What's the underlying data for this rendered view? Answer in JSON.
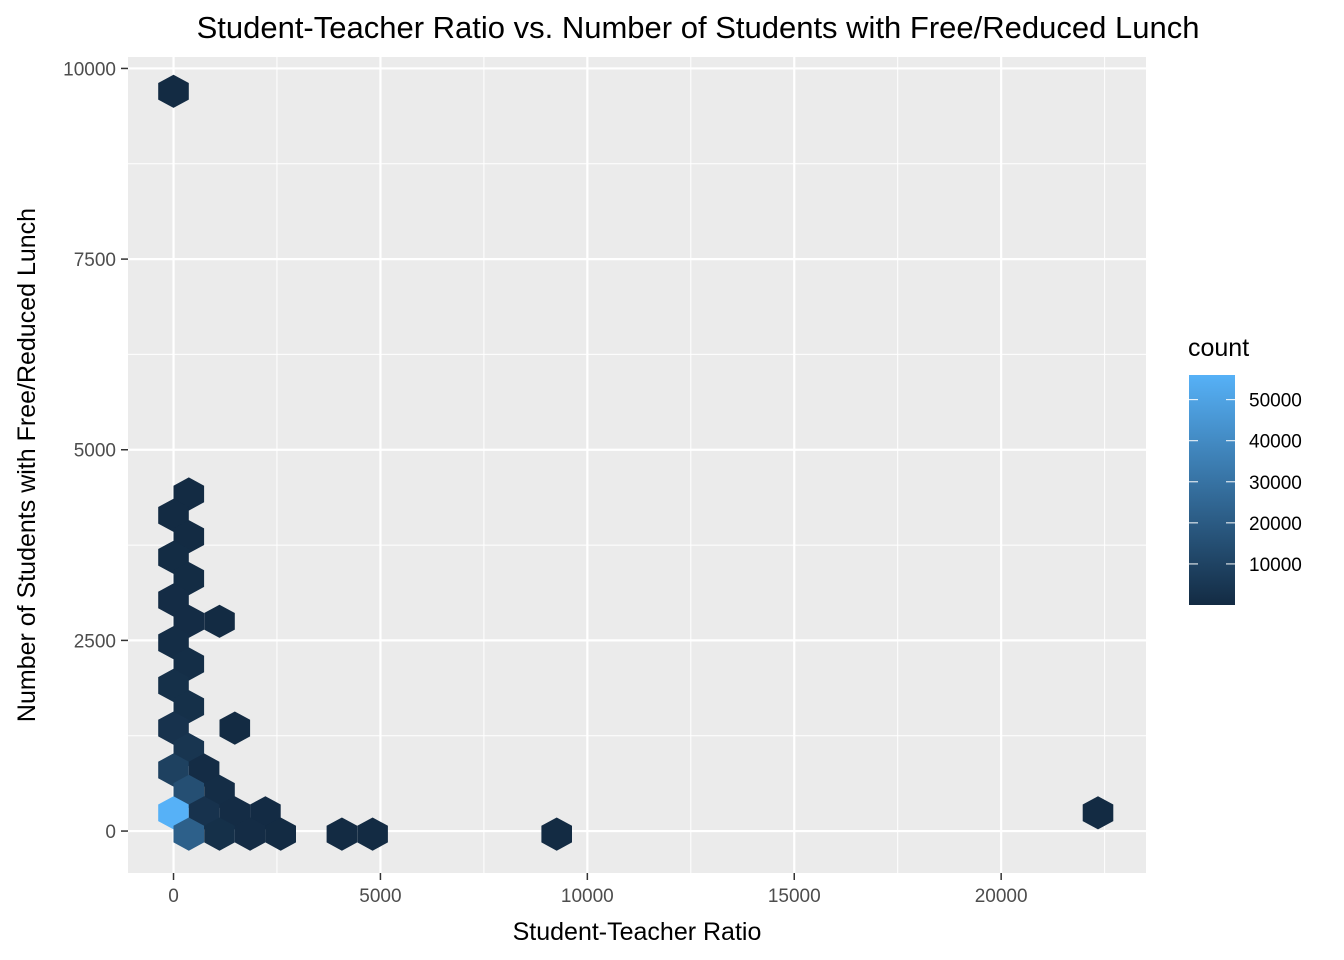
{
  "chart_data": {
    "type": "heatmap",
    "subtype": "hexbin",
    "title": "Student-Teacher Ratio vs. Number of Students with Free/Reduced Lunch",
    "xlabel": "Student-Teacher Ratio",
    "ylabel": "Number of Students with Free/Reduced Lunch",
    "xlim": [
      -1100,
      23500
    ],
    "ylim": [
      -550,
      10150
    ],
    "x_ticks": [
      0,
      5000,
      10000,
      15000,
      20000
    ],
    "y_ticks": [
      0,
      2500,
      5000,
      7500,
      10000
    ],
    "x_tick_labels": [
      "0",
      "5000",
      "10000",
      "15000",
      "20000"
    ],
    "y_tick_labels": [
      "0",
      "2500",
      "5000",
      "7500",
      "10000"
    ],
    "grid": true,
    "legend": {
      "title": "count",
      "placement": "right",
      "min": 1,
      "max": 56000,
      "breaks": [
        10000,
        20000,
        30000,
        40000,
        50000
      ],
      "break_labels": [
        "10000",
        "20000",
        "30000",
        "40000",
        "50000"
      ],
      "color_low": "#132B43",
      "color_high": "#56B1F7"
    },
    "colors": {
      "panel": "#EBEBEB",
      "gridline": "#FFFFFF"
    },
    "hexagons": [
      {
        "x": 0,
        "y": 9700,
        "count": 50
      },
      {
        "x": 370,
        "y": 4420,
        "count": 60
      },
      {
        "x": 0,
        "y": 4140,
        "count": 100
      },
      {
        "x": 370,
        "y": 3860,
        "count": 150
      },
      {
        "x": 0,
        "y": 3590,
        "count": 300
      },
      {
        "x": 370,
        "y": 3310,
        "count": 300
      },
      {
        "x": 0,
        "y": 3030,
        "count": 500
      },
      {
        "x": 370,
        "y": 2750,
        "count": 500
      },
      {
        "x": 1110,
        "y": 2750,
        "count": 50
      },
      {
        "x": 0,
        "y": 2470,
        "count": 1000
      },
      {
        "x": 370,
        "y": 2190,
        "count": 1200
      },
      {
        "x": 0,
        "y": 1910,
        "count": 2000
      },
      {
        "x": 370,
        "y": 1630,
        "count": 2000
      },
      {
        "x": 1480,
        "y": 1350,
        "count": 50
      },
      {
        "x": 0,
        "y": 1350,
        "count": 3000
      },
      {
        "x": 370,
        "y": 1070,
        "count": 4000
      },
      {
        "x": 0,
        "y": 800,
        "count": 9000
      },
      {
        "x": 740,
        "y": 800,
        "count": 500
      },
      {
        "x": 370,
        "y": 520,
        "count": 15000
      },
      {
        "x": 1110,
        "y": 520,
        "count": 1000
      },
      {
        "x": 0,
        "y": 240,
        "count": 56000
      },
      {
        "x": 740,
        "y": 240,
        "count": 3000
      },
      {
        "x": 1480,
        "y": 240,
        "count": 500
      },
      {
        "x": 2220,
        "y": 240,
        "count": 200
      },
      {
        "x": 370,
        "y": -40,
        "count": 22000
      },
      {
        "x": 1110,
        "y": -40,
        "count": 2000
      },
      {
        "x": 1850,
        "y": -40,
        "count": 500
      },
      {
        "x": 2590,
        "y": -40,
        "count": 150
      },
      {
        "x": 4070,
        "y": -40,
        "count": 30
      },
      {
        "x": 4810,
        "y": -40,
        "count": 20
      },
      {
        "x": 9260,
        "y": -40,
        "count": 5
      },
      {
        "x": 22340,
        "y": 240,
        "count": 1
      }
    ]
  }
}
